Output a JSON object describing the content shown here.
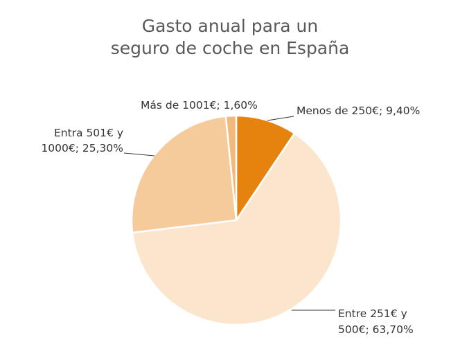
{
  "chart_data": {
    "type": "pie",
    "title_lines": [
      "Gasto anual para un",
      "seguro de coche en España"
    ],
    "start": "top",
    "direction": "clockwise",
    "slices": [
      {
        "label": "Menos de 250€",
        "value": 9.4,
        "data_label_lines": [
          "Menos de 250€; 9,40%"
        ],
        "color": "#E6830F"
      },
      {
        "label": "Entre 251€ y 500€",
        "value": 63.7,
        "data_label_lines": [
          "Entre 251€ y",
          "500€; 63,70%"
        ],
        "color": "#FBE5CC"
      },
      {
        "label": "Entra 501€ y 1000€",
        "value": 25.3,
        "data_label_lines": [
          "Entra 501€ y",
          "1000€; 25,30%"
        ],
        "color": "#F6CB9B"
      },
      {
        "label": "Más de 1001€",
        "value": 1.6,
        "data_label_lines": [
          "Más de 1001€; 1,60%"
        ],
        "color": "#F2B97C"
      }
    ]
  }
}
